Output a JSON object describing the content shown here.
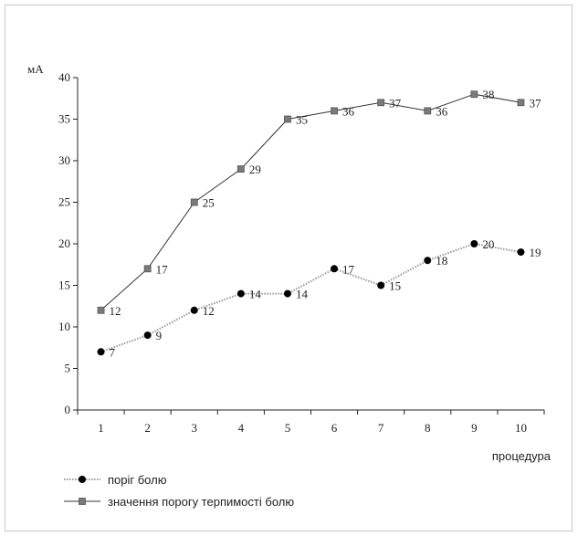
{
  "chart_data": {
    "type": "line",
    "ylabel": "мА",
    "xlabel": "процедура",
    "x": [
      1,
      2,
      3,
      4,
      5,
      6,
      7,
      8,
      9,
      10
    ],
    "x_tick_labels": [
      "1",
      "2",
      "3",
      "4",
      "5",
      "6",
      "7",
      "8",
      "9",
      "10"
    ],
    "ylim": [
      0,
      40
    ],
    "y_ticks": [
      0,
      5,
      10,
      15,
      20,
      25,
      30,
      35,
      40
    ],
    "y_tick_labels": [
      "0",
      "5",
      "10",
      "15",
      "20",
      "25",
      "30",
      "35",
      "40"
    ],
    "grid": false,
    "legend_position": "bottom-left",
    "series": [
      {
        "name": "поріг болю",
        "values": [
          7,
          9,
          12,
          14,
          14,
          17,
          15,
          18,
          20,
          19
        ],
        "data_labels": [
          "7",
          "9",
          "12",
          "14",
          "14",
          "17",
          "15",
          "18",
          "20",
          "19"
        ],
        "marker": "circle",
        "color": "#000000",
        "line_color": "#9a9a9a",
        "line_style": "dotted"
      },
      {
        "name": "значення порогу терпимості болю",
        "values": [
          12,
          17,
          25,
          29,
          35,
          36,
          37,
          36,
          38,
          37
        ],
        "data_labels": [
          "12",
          "17",
          "25",
          "29",
          "35",
          "36",
          "37",
          "36",
          "38",
          "37"
        ],
        "marker": "square",
        "color": "#7a7a7a",
        "line_color": "#333333",
        "line_style": "solid"
      }
    ]
  }
}
